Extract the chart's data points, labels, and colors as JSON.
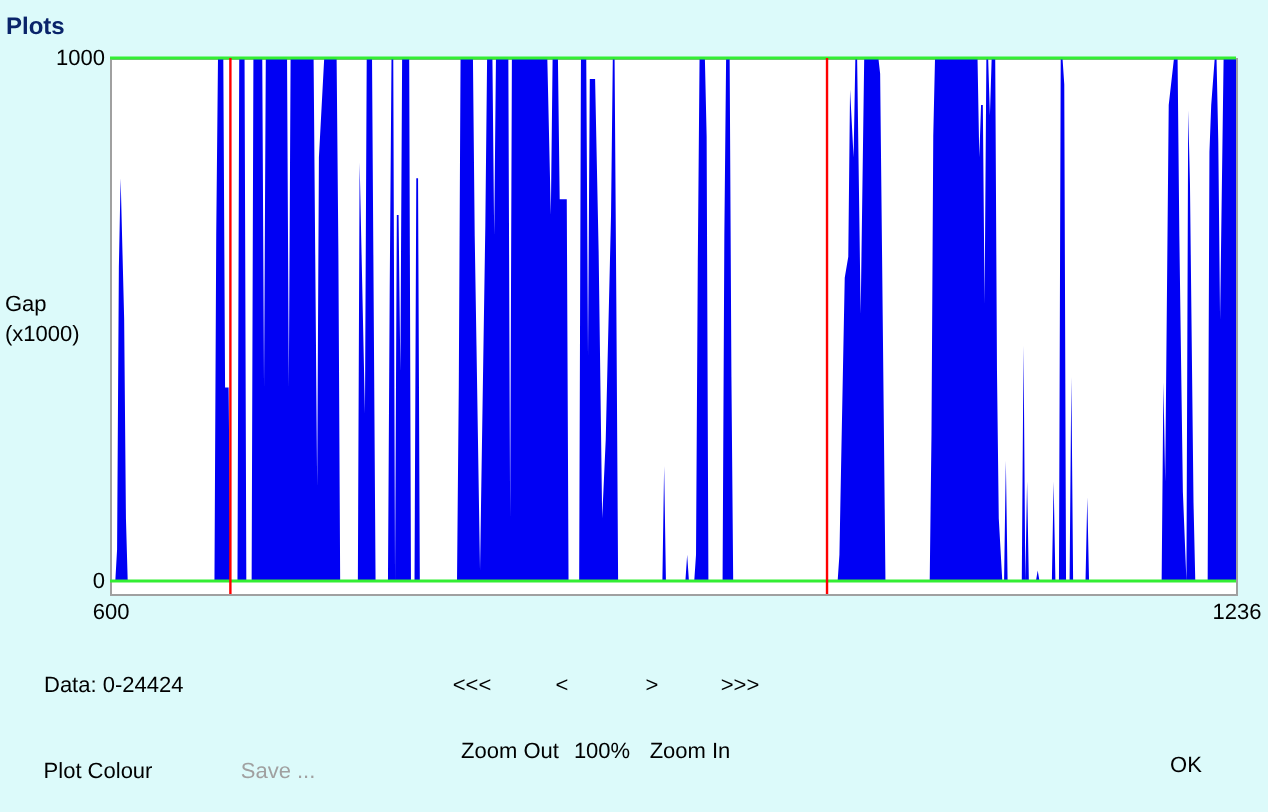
{
  "chart_data": {
    "type": "area",
    "title": "Plots",
    "ylabel": "Gap\n(x1000)",
    "color": "#0000f4",
    "x": [
      600,
      603,
      604,
      605,
      606,
      608,
      609,
      610,
      659,
      660,
      661,
      664,
      665,
      667,
      668,
      672,
      673,
      676,
      677,
      680,
      681,
      686,
      687,
      688,
      700,
      701,
      702,
      715,
      717,
      718,
      721,
      728,
      729,
      730,
      740,
      741,
      744,
      745,
      748,
      750,
      757,
      758,
      759,
      760,
      761,
      762,
      763,
      764,
      765,
      769,
      770,
      772,
      773,
      774,
      775,
      796,
      797,
      798,
      805,
      806,
      807,
      809,
      812,
      813,
      816,
      817,
      818,
      825,
      826,
      827,
      847,
      849,
      850,
      853,
      854,
      858,
      859,
      865,
      866,
      869,
      870,
      871,
      874,
      876,
      878,
      880,
      883,
      884,
      885,
      886,
      887,
      912,
      913,
      914,
      925,
      926,
      927,
      930,
      931,
      932,
      933,
      936,
      937,
      938,
      946,
      947,
      948,
      950,
      951,
      952,
      1011,
      1012,
      1013,
      1015,
      1017,
      1018,
      1020,
      1021,
      1022,
      1024,
      1026,
      1034,
      1035,
      1037,
      1038,
      1063,
      1064,
      1065,
      1066,
      1090,
      1091,
      1092,
      1093,
      1094,
      1095,
      1096,
      1097,
      1098,
      1100,
      1101,
      1102,
      1104,
      1105,
      1106,
      1107,
      1115,
      1116,
      1117,
      1118,
      1119,
      1123,
      1124,
      1125,
      1132,
      1133,
      1134,
      1136,
      1137,
      1138,
      1139,
      1140,
      1142,
      1143,
      1144,
      1151,
      1152,
      1153,
      1194,
      1195,
      1196,
      1198,
      1201,
      1203,
      1204,
      1206,
      1208,
      1209,
      1210,
      1212,
      1213,
      1220,
      1221,
      1222,
      1224,
      1225,
      1226,
      1227,
      1229,
      1236
    ],
    "values": [
      0,
      0,
      60,
      600,
      770,
      500,
      120,
      0,
      0,
      660,
      1000,
      1000,
      370,
      370,
      0,
      0,
      1000,
      1000,
      0,
      0,
      1000,
      1000,
      370,
      1000,
      1000,
      370,
      1000,
      1000,
      180,
      810,
      1000,
      1000,
      630,
      0,
      0,
      800,
      320,
      1000,
      1000,
      0,
      0,
      560,
      1000,
      1000,
      0,
      700,
      700,
      400,
      1000,
      1000,
      0,
      0,
      770,
      770,
      0,
      0,
      370,
      1000,
      1000,
      660,
      450,
      20,
      680,
      1000,
      1000,
      660,
      1000,
      1000,
      120,
      1000,
      1000,
      700,
      1000,
      1000,
      730,
      730,
      0,
      0,
      1000,
      1000,
      430,
      960,
      960,
      630,
      120,
      270,
      700,
      1000,
      1000,
      530,
      0,
      0,
      220,
      0,
      0,
      50,
      0,
      0,
      50,
      610,
      1000,
      1000,
      850,
      0,
      0,
      660,
      1000,
      1000,
      390,
      0,
      0,
      50,
      230,
      580,
      620,
      940,
      810,
      1000,
      1000,
      510,
      1000,
      1000,
      970,
      330,
      0,
      0,
      280,
      850,
      1000,
      1000,
      810,
      910,
      910,
      530,
      1000,
      1000,
      890,
      1000,
      1000,
      400,
      120,
      0,
      0,
      230,
      0,
      0,
      450,
      0,
      190,
      0,
      0,
      20,
      0,
      0,
      190,
      0,
      0,
      1000,
      1000,
      950,
      0,
      0,
      390,
      0,
      0,
      160,
      0,
      0,
      380,
      190,
      910,
      1000,
      1000,
      660,
      170,
      0,
      900,
      760,
      150,
      0,
      0,
      820,
      910,
      1000,
      1000,
      840,
      500,
      1000,
      1000
    ],
    "xlim": [
      600,
      1236
    ],
    "ylim": [
      -25,
      1000
    ],
    "xticks": [
      600,
      1236
    ],
    "yticks": [
      0,
      1000
    ],
    "ref_lines": [
      {
        "axis": "y",
        "value": 1000,
        "color": "#33ee33"
      },
      {
        "axis": "y",
        "value": 0,
        "color": "#33ee33"
      },
      {
        "axis": "x",
        "value": 668,
        "color": "#ff0000"
      },
      {
        "axis": "x",
        "value": 1005,
        "color": "#ff0000"
      }
    ],
    "annotations": [
      "Data: 0-24424",
      "<<<",
      "<",
      ">",
      ">>>",
      "Zoom Out",
      "100%",
      "Zoom In",
      "Plot Colour",
      "Save ...",
      "OK"
    ]
  }
}
